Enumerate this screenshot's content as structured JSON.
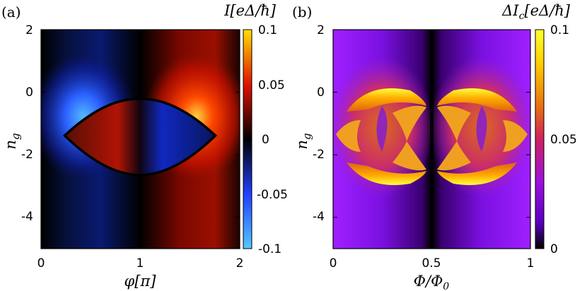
{
  "chart_data": [
    {
      "type": "heatmap",
      "panel_label": "(a)",
      "title": "I[eΔ/ħ]",
      "xlabel": "φ[π]",
      "ylabel": "n_g",
      "xlim": [
        0,
        2
      ],
      "ylim": [
        -5,
        2
      ],
      "x_ticks": [
        "0",
        "1",
        "2"
      ],
      "y_ticks": [
        "2",
        "0",
        "-2",
        "-4"
      ],
      "colorbar": {
        "range": [
          -0.1,
          0.1
        ],
        "ticks": [
          "0.1",
          "0.05",
          "0",
          "-0.05",
          "-0.1"
        ],
        "colors": [
          "#55c8ff",
          "#1f3fff",
          "#000000",
          "#e01000",
          "#ffe000"
        ]
      },
      "features": {
        "lens_region_ng": [
          -2.6,
          -0.4
        ],
        "lens_region_phi": [
          0.3,
          1.7
        ]
      }
    },
    {
      "type": "heatmap",
      "panel_label": "(b)",
      "title": "ΔI_c[eΔ/ħ]",
      "xlabel": "Φ/Φ_0",
      "ylabel": "n_g",
      "xlim": [
        0,
        1
      ],
      "ylim": [
        -5,
        2
      ],
      "x_ticks": [
        "0",
        "0.5",
        "1"
      ],
      "y_ticks": [
        "2",
        "0",
        "-2",
        "-4"
      ],
      "colorbar": {
        "range": [
          0,
          0.1
        ],
        "ticks": [
          "0.1",
          "0.05",
          "0"
        ],
        "colors": [
          "#000000",
          "#5a00c0",
          "#9a10e0",
          "#d02060",
          "#e87010",
          "#ffd000",
          "#ffff30"
        ]
      }
    }
  ]
}
